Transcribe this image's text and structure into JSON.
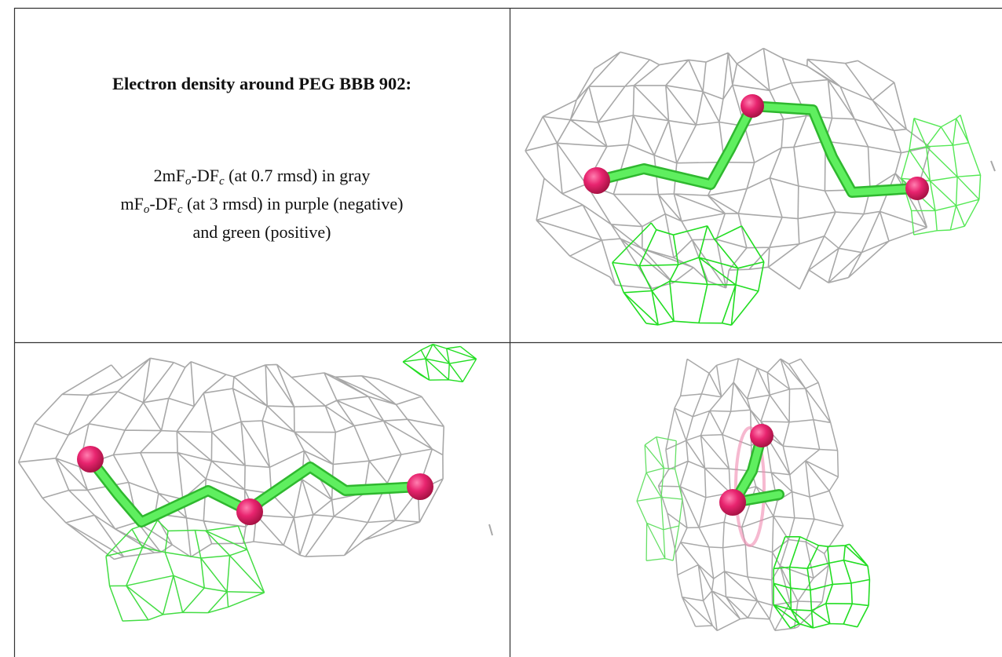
{
  "table": {
    "title": "Electron density around PEG BBB 902:",
    "legend_lines": [
      [
        "2mF",
        "o",
        "-DF",
        "c",
        " (at 0.7 rmsd) in gray"
      ],
      [
        "mF",
        "o",
        "-DF",
        "c",
        " (at 3 rmsd) in purple (negative)"
      ],
      [
        "and green (positive)"
      ]
    ]
  }
}
